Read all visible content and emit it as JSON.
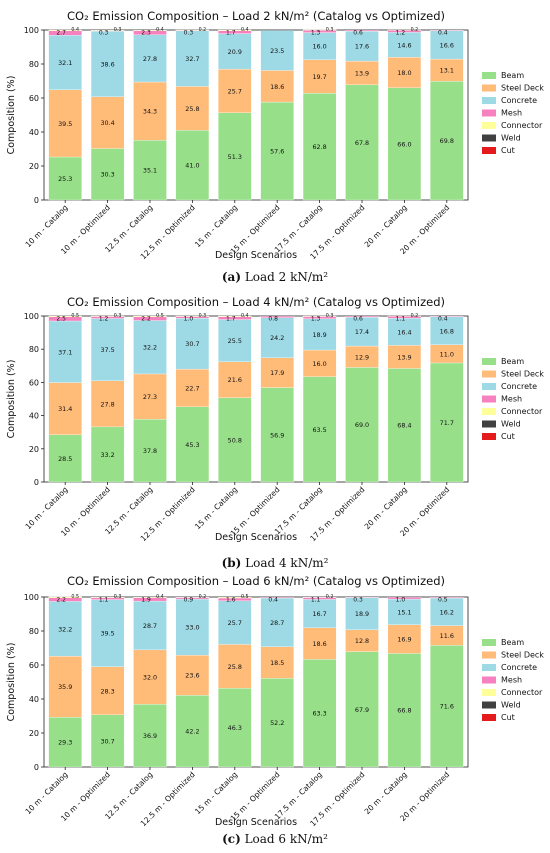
{
  "colors": {
    "Beam": "#98df8a",
    "Steel Deck": "#ffbb78",
    "Concrete": "#9edae5",
    "Mesh": "#f781bf",
    "Connector": "#ffff99",
    "Weld": "#404040",
    "Cut": "#e41a1c"
  },
  "chart_data": [
    {
      "type": "bar",
      "stacked": true,
      "title": "CO₂ Emission Composition – Load 2 kN/m² (Catalog vs Optimized)",
      "caption_letter": "(a)",
      "caption_text": " Load 2 kN/m²",
      "xlabel": "Design Scenarios",
      "ylabel": "Composition (%)",
      "ylim": [
        0,
        100
      ],
      "yticks": [
        0,
        20,
        40,
        60,
        80,
        100
      ],
      "legend_position": "right",
      "categories": [
        "10 m - Catalog",
        "10 m - Optimized",
        "12.5 m - Catalog",
        "12.5 m - Optimized",
        "15 m - Catalog",
        "15 m - Optimized",
        "17.5 m - Catalog",
        "17.5 m - Optimized",
        "20 m - Catalog",
        "20 m - Optimized"
      ],
      "series": [
        {
          "name": "Beam",
          "values": [
            25.3,
            30.3,
            35.1,
            41.0,
            51.3,
            57.6,
            62.8,
            67.8,
            66.0,
            69.8
          ]
        },
        {
          "name": "Steel Deck",
          "values": [
            39.5,
            30.4,
            34.3,
            25.8,
            25.7,
            18.6,
            19.7,
            13.9,
            18.0,
            13.1
          ]
        },
        {
          "name": "Concrete",
          "values": [
            32.1,
            38.6,
            27.8,
            32.7,
            20.9,
            23.5,
            16.0,
            17.6,
            14.6,
            16.6
          ]
        },
        {
          "name": "Mesh",
          "values": [
            2.7,
            0.3,
            2.3,
            0.3,
            1.7,
            0.0,
            1.3,
            0.6,
            1.2,
            0.4
          ]
        },
        {
          "name": "Connector",
          "values": [
            0.4,
            0.3,
            0.4,
            0.2,
            0.4,
            0.0,
            0.3,
            0.0,
            0.2,
            0.0
          ]
        },
        {
          "name": "Weld",
          "values": [
            0,
            0,
            0,
            0,
            0,
            0,
            0,
            0,
            0,
            0
          ]
        },
        {
          "name": "Cut",
          "values": [
            0,
            0,
            0,
            0,
            0,
            0,
            0,
            0,
            0,
            0
          ]
        }
      ]
    },
    {
      "type": "bar",
      "stacked": true,
      "title": "CO₂ Emission Composition – Load 4 kN/m² (Catalog vs Optimized)",
      "caption_letter": "(b)",
      "caption_text": " Load 4 kN/m²",
      "xlabel": "Design Scenarios",
      "ylabel": "Composition (%)",
      "ylim": [
        0,
        100
      ],
      "yticks": [
        0,
        20,
        40,
        60,
        80,
        100
      ],
      "legend_position": "right",
      "categories": [
        "10 m - Catalog",
        "10 m - Optimized",
        "12.5 m - Catalog",
        "12.5 m - Optimized",
        "15 m - Catalog",
        "15 m - Optimized",
        "17.5 m - Catalog",
        "17.5 m - Optimized",
        "20 m - Catalog",
        "20 m - Optimized"
      ],
      "series": [
        {
          "name": "Beam",
          "values": [
            28.5,
            33.2,
            37.8,
            45.3,
            50.8,
            56.9,
            63.5,
            69.0,
            68.4,
            71.7
          ]
        },
        {
          "name": "Steel Deck",
          "values": [
            31.4,
            27.8,
            27.3,
            22.7,
            21.6,
            17.9,
            16.0,
            12.9,
            13.9,
            11.0
          ]
        },
        {
          "name": "Concrete",
          "values": [
            37.1,
            37.5,
            32.2,
            30.7,
            25.5,
            24.2,
            18.9,
            17.4,
            16.4,
            16.8
          ]
        },
        {
          "name": "Mesh",
          "values": [
            2.5,
            1.2,
            2.2,
            1.0,
            1.7,
            0.8,
            1.3,
            0.6,
            1.1,
            0.4
          ]
        },
        {
          "name": "Connector",
          "values": [
            0.5,
            0.3,
            0.5,
            0.3,
            0.4,
            0.0,
            0.3,
            0.0,
            0.2,
            0.0
          ]
        },
        {
          "name": "Weld",
          "values": [
            0,
            0,
            0,
            0,
            0,
            0,
            0,
            0,
            0,
            0
          ]
        },
        {
          "name": "Cut",
          "values": [
            0,
            0,
            0,
            0,
            0,
            0,
            0,
            0,
            0,
            0
          ]
        }
      ]
    },
    {
      "type": "bar",
      "stacked": true,
      "title": "CO₂ Emission Composition – Load 6 kN/m² (Catalog vs Optimized)",
      "caption_letter": "(c)",
      "caption_text": " Load 6 kN/m²",
      "xlabel": "Design Scenarios",
      "ylabel": "Composition (%)",
      "ylim": [
        0,
        100
      ],
      "yticks": [
        0,
        20,
        40,
        60,
        80,
        100
      ],
      "legend_position": "right",
      "categories": [
        "10 m - Catalog",
        "10 m - Optimized",
        "12.5 m - Catalog",
        "12.5 m - Optimized",
        "15 m - Catalog",
        "15 m - Optimized",
        "17.5 m - Catalog",
        "17.5 m - Optimized",
        "20 m - Catalog",
        "20 m - Optimized"
      ],
      "series": [
        {
          "name": "Beam",
          "values": [
            29.3,
            30.7,
            36.9,
            42.2,
            46.3,
            52.2,
            63.3,
            67.9,
            66.8,
            71.6
          ]
        },
        {
          "name": "Steel Deck",
          "values": [
            35.9,
            28.3,
            32.0,
            23.6,
            25.8,
            18.5,
            18.6,
            12.8,
            16.9,
            11.6
          ]
        },
        {
          "name": "Concrete",
          "values": [
            32.2,
            39.5,
            28.7,
            33.0,
            25.7,
            28.7,
            16.7,
            18.9,
            15.1,
            16.2
          ]
        },
        {
          "name": "Mesh",
          "values": [
            2.2,
            1.1,
            1.9,
            0.9,
            1.6,
            0.4,
            1.1,
            0.3,
            1.0,
            0.5
          ]
        },
        {
          "name": "Connector",
          "values": [
            0.5,
            0.3,
            0.4,
            0.2,
            0.5,
            0.0,
            0.2,
            0.0,
            0.0,
            0.0
          ]
        },
        {
          "name": "Weld",
          "values": [
            0,
            0,
            0,
            0,
            0,
            0,
            0,
            0,
            0,
            0
          ]
        },
        {
          "name": "Cut",
          "values": [
            0,
            0,
            0,
            0,
            0,
            0,
            0,
            0,
            0,
            0
          ]
        }
      ]
    }
  ]
}
